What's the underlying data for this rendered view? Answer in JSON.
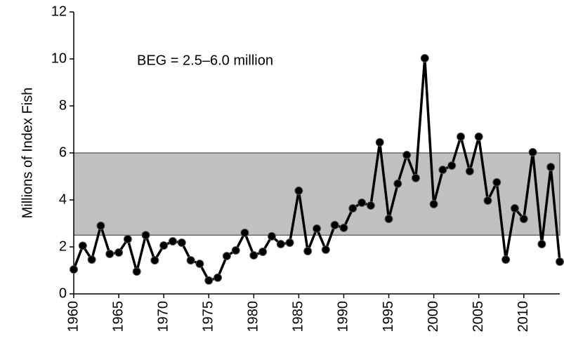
{
  "chart_data": {
    "type": "line",
    "ylabel": "Millions of Index Fish",
    "annotation": "BEG = 2.5–6.0 million",
    "reference_band": {
      "ylim": [
        2.5,
        6.0
      ],
      "color": "#c0c0c0"
    },
    "x": [
      1960,
      1961,
      1962,
      1963,
      1964,
      1965,
      1966,
      1967,
      1968,
      1969,
      1970,
      1971,
      1972,
      1973,
      1974,
      1975,
      1976,
      1977,
      1978,
      1979,
      1980,
      1981,
      1982,
      1983,
      1984,
      1985,
      1986,
      1987,
      1988,
      1989,
      1990,
      1991,
      1992,
      1993,
      1994,
      1995,
      1996,
      1997,
      1998,
      1999,
      2000,
      2001,
      2002,
      2003,
      2004,
      2005,
      2006,
      2007,
      2008,
      2009,
      2010,
      2011,
      2012,
      2013,
      2014
    ],
    "values": [
      1.04,
      2.05,
      1.46,
      2.9,
      1.7,
      1.76,
      2.33,
      0.95,
      2.5,
      1.43,
      2.06,
      2.24,
      2.18,
      1.43,
      1.28,
      0.57,
      0.69,
      1.61,
      1.85,
      2.6,
      1.64,
      1.79,
      2.45,
      2.12,
      2.18,
      4.39,
      1.82,
      2.78,
      1.88,
      2.93,
      2.81,
      3.64,
      3.88,
      3.76,
      6.45,
      3.19,
      4.69,
      5.91,
      4.93,
      10.03,
      3.82,
      5.28,
      5.46,
      6.69,
      5.22,
      6.69,
      3.97,
      4.75,
      1.46,
      3.64,
      3.19,
      6.03,
      2.12,
      5.4,
      1.37
    ],
    "color": "#000000",
    "xlim": [
      1960,
      2014
    ],
    "xticks": [
      1960,
      1965,
      1970,
      1975,
      1980,
      1985,
      1990,
      1995,
      2000,
      2005,
      2010
    ],
    "ylim": [
      0,
      12
    ],
    "yticks": [
      0,
      2,
      4,
      6,
      8,
      10,
      12
    ]
  }
}
